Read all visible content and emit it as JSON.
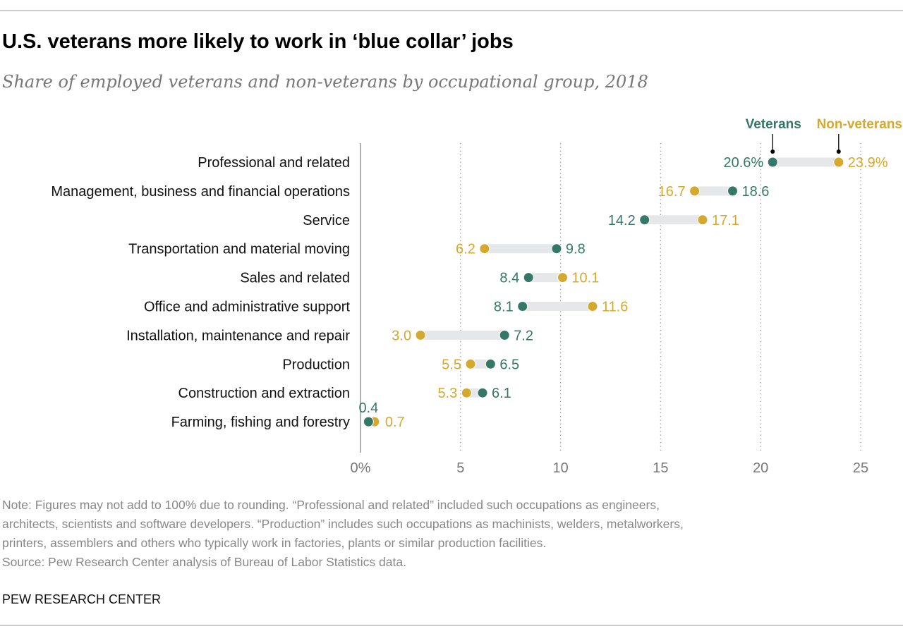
{
  "title": "U.S. veterans more likely to work in ‘blue collar’ jobs",
  "subtitle": "Share of employed veterans and non-veterans by occupational group, 2018",
  "note": [
    "Note: Figures may not add to 100% due to rounding. “Professional and related” included such occupations as engineers,",
    "architects, scientists and software developers. “Production” includes such occupations as machinists, welders, metalworkers,",
    "printers, assemblers and others who typically work in factories, plants or similar production facilities."
  ],
  "source": "Source: Pew Research Center analysis of Bureau of Labor Statistics data.",
  "brand": "PEW RESEARCH CENTER",
  "colors": {
    "veterans": "#357868",
    "non_veterans": "#d5a92f",
    "bar": "#e6e7e8"
  },
  "chart_data": {
    "type": "dot-range",
    "xlim": [
      0,
      25
    ],
    "xticks": [
      "0%",
      "5",
      "10",
      "15",
      "20",
      "25"
    ],
    "grid": "vertical dotted",
    "legend": "top-right",
    "categories": [
      "Professional and related",
      "Management, business and financial operations",
      "Service",
      "Transportation and material moving",
      "Sales and related",
      "Office and administrative support",
      "Installation, maintenance and repair",
      "Production",
      "Construction and extraction",
      "Farming, fishing and forestry"
    ],
    "series": [
      {
        "name": "Veterans",
        "values": [
          20.6,
          18.6,
          14.2,
          9.8,
          8.4,
          8.1,
          7.2,
          6.5,
          6.1,
          0.4
        ],
        "labels": [
          "20.6%",
          "18.6",
          "14.2",
          "9.8",
          "8.4",
          "8.1",
          "7.2",
          "6.5",
          "6.1",
          "0.4"
        ]
      },
      {
        "name": "Non-veterans",
        "values": [
          23.9,
          16.7,
          17.1,
          6.2,
          10.1,
          11.6,
          3.0,
          5.5,
          5.3,
          0.7
        ],
        "labels": [
          "23.9%",
          "16.7",
          "17.1",
          "6.2",
          "10.1",
          "11.6",
          "3.0",
          "5.5",
          "5.3",
          "0.7"
        ]
      }
    ]
  }
}
